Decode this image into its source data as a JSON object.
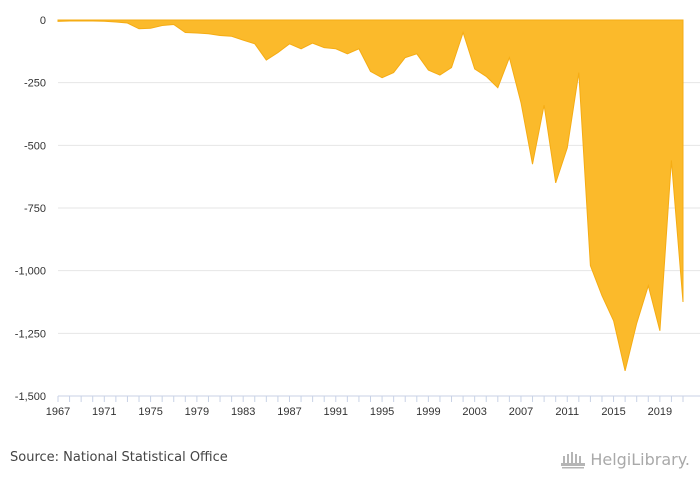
{
  "source": "Source: National Statistical Office",
  "logo_text": "HelgiLibrary.",
  "colors": {
    "area": "#FBBA2B",
    "area_stroke": "#F5AC14",
    "grid": "#e6e6e6",
    "axis": "#c8d2e6"
  },
  "chart_data": {
    "type": "area",
    "title": "",
    "xlabel": "",
    "ylabel": "",
    "xlim": [
      1967,
      2021
    ],
    "ylim": [
      -1500,
      0
    ],
    "y_ticks": [
      0,
      -250,
      -500,
      -750,
      -1000,
      -1250,
      -1500
    ],
    "y_tick_labels": [
      "0",
      "-250",
      "-500",
      "-750",
      "-1,000",
      "-1,250",
      "-1,500"
    ],
    "x_tick_labels": [
      "1967",
      "1971",
      "1975",
      "1979",
      "1983",
      "1987",
      "1991",
      "1995",
      "1999",
      "2003",
      "2007",
      "2011",
      "2015",
      "2019"
    ],
    "grid": true,
    "x": [
      1967,
      1968,
      1969,
      1970,
      1971,
      1972,
      1973,
      1974,
      1975,
      1976,
      1977,
      1978,
      1979,
      1980,
      1981,
      1982,
      1983,
      1984,
      1985,
      1986,
      1987,
      1988,
      1989,
      1990,
      1991,
      1992,
      1993,
      1994,
      1995,
      1996,
      1997,
      1998,
      1999,
      2000,
      2001,
      2002,
      2003,
      2004,
      2005,
      2006,
      2007,
      2008,
      2009,
      2010,
      2011,
      2012,
      2013,
      2014,
      2015,
      2016,
      2017,
      2018,
      2019,
      2020,
      2021
    ],
    "values": [
      -5,
      -4,
      -4,
      -4,
      -5,
      -8,
      -12,
      -35,
      -33,
      -22,
      -18,
      -50,
      -52,
      -55,
      -62,
      -65,
      -80,
      -95,
      -160,
      -130,
      -95,
      -115,
      -92,
      -110,
      -115,
      -135,
      -115,
      -205,
      -230,
      -210,
      -150,
      -135,
      -200,
      -220,
      -190,
      -50,
      -195,
      -225,
      -270,
      -150,
      -330,
      -575,
      -340,
      -650,
      -510,
      -210,
      -980,
      -1100,
      -1200,
      -1400,
      -1210,
      -1060,
      -1240,
      -560,
      -1125
    ]
  }
}
